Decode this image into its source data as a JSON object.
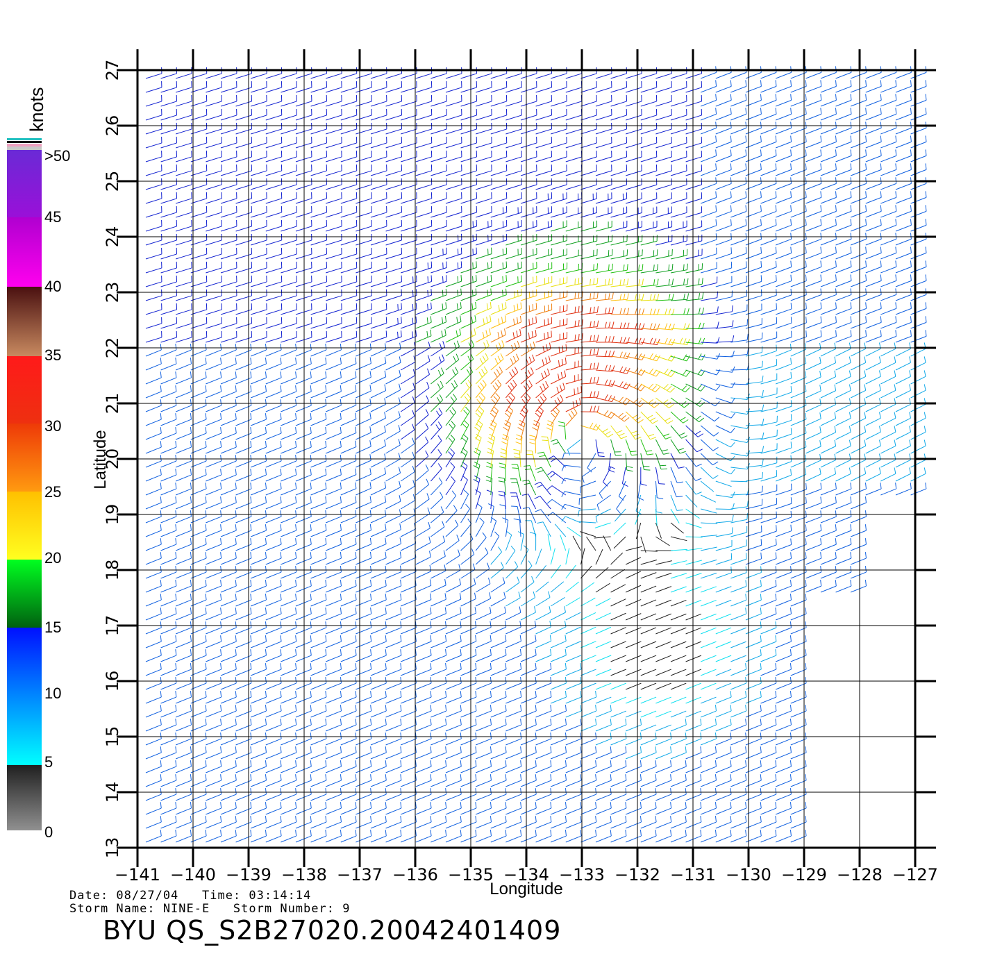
{
  "colorbar": {
    "title": "knots",
    "labels": [
      ">50",
      "45",
      "40",
      "35",
      "30",
      "25",
      "20",
      "15",
      "10",
      "5",
      "0"
    ]
  },
  "axes": {
    "xlabel": "Longitude",
    "ylabel": "Latitude",
    "x_ticks": [
      "−141",
      "−140",
      "−139",
      "−138",
      "−137",
      "−136",
      "−135",
      "−134",
      "−133",
      "−132",
      "−131",
      "−130",
      "−129",
      "−128",
      "−127"
    ],
    "y_ticks": [
      "13",
      "14",
      "15",
      "16",
      "17",
      "18",
      "19",
      "20",
      "21",
      "22",
      "23",
      "24",
      "25",
      "26",
      "27"
    ],
    "lon_range": [
      -141,
      -127
    ],
    "lat_range": [
      13,
      27
    ]
  },
  "storm": {
    "center_lon": -133.1,
    "center_lat": 20.5
  },
  "info": {
    "line1": "Date: 08/27/04   Time: 03:14:14",
    "line2": "Storm Name: NINE-E   Storm Number: 9",
    "product": "BYU QS_S2B27020.20042401409"
  }
}
